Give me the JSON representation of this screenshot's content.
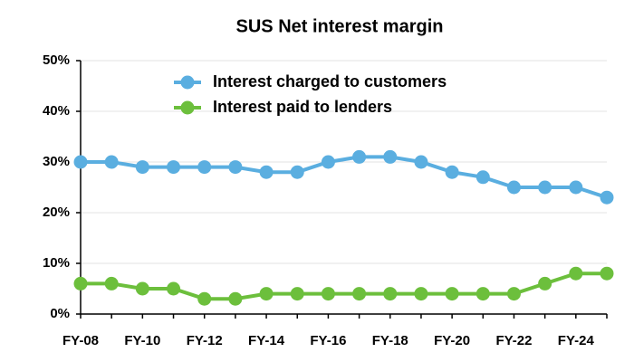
{
  "chart_data": {
    "type": "line",
    "title": "SUS Net interest margin",
    "categories": [
      "FY-08",
      null,
      "FY-10",
      null,
      "FY-12",
      null,
      "FY-14",
      null,
      "FY-16",
      null,
      "FY-18",
      null,
      "FY-20",
      null,
      "FY-22",
      null,
      "FY-24",
      null
    ],
    "series": [
      {
        "name": "Interest charged to customers",
        "color": "#5aaee0",
        "values": [
          30,
          30,
          29,
          29,
          29,
          29,
          28,
          28,
          30,
          31,
          31,
          30,
          28,
          27,
          25,
          25,
          25,
          23
        ]
      },
      {
        "name": "Interest paid to lenders",
        "color": "#6cbf3c",
        "values": [
          6,
          6,
          5,
          5,
          3,
          3,
          4,
          4,
          4,
          4,
          4,
          4,
          4,
          4,
          4,
          6,
          8,
          8
        ]
      }
    ],
    "ylim": [
      0,
      50
    ],
    "yticks": [
      {
        "value": 0,
        "label": "0%"
      },
      {
        "value": 10,
        "label": "10%"
      },
      {
        "value": 20,
        "label": "20%"
      },
      {
        "value": 30,
        "label": "30%"
      },
      {
        "value": 40,
        "label": "40%"
      },
      {
        "value": 50,
        "label": "50%"
      }
    ],
    "grid": true
  }
}
